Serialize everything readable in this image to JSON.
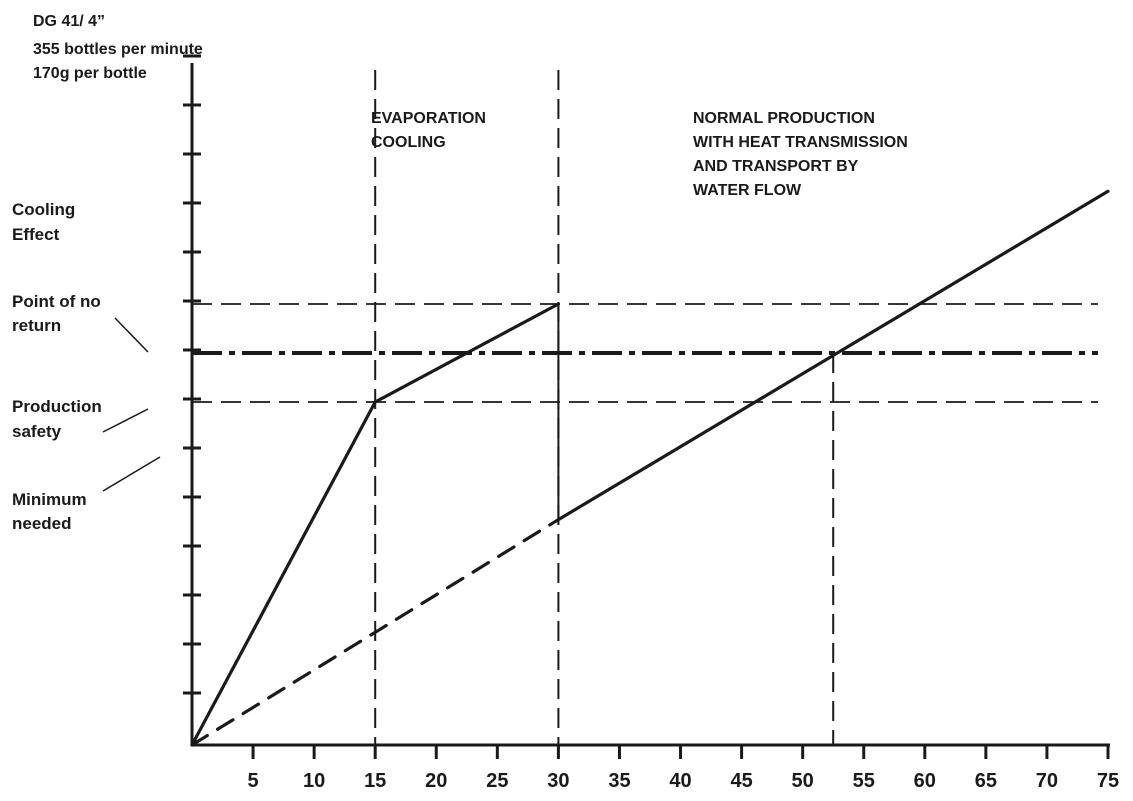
{
  "header": {
    "lines": [
      "DG  41/ 4”",
      "355 bottles per minute",
      "170g per bottle"
    ]
  },
  "side_labels": {
    "cooling_effect": [
      "Cooling",
      "Effect"
    ],
    "point_of_no_return": [
      "Point of no",
      "return"
    ],
    "production_safety": [
      "Production",
      "safety"
    ],
    "minimum_needed": [
      "Minimum",
      "needed"
    ]
  },
  "regions": {
    "evaporation": [
      "EVAPORATION",
      "COOLING"
    ],
    "normal": [
      "NORMAL PRODUCTION",
      "WITH HEAT TRANSMISSION",
      "AND TRANSPORT BY",
      "WATER FLOW"
    ]
  },
  "colors": {
    "ink": "#1a1a1a",
    "background": "#ffffff"
  },
  "chart_data": {
    "type": "line",
    "title": "",
    "xlabel": "",
    "ylabel": "Cooling Effect",
    "xlim": [
      0,
      75
    ],
    "ylim": [
      0,
      14
    ],
    "x_ticks": [
      5,
      10,
      15,
      20,
      25,
      30,
      35,
      40,
      45,
      50,
      55,
      60,
      65,
      70,
      75
    ],
    "y_tick_count": 14,
    "grid": false,
    "reference_lines": {
      "point_of_no_return": 8,
      "production_safety": 7,
      "minimum_needed": 6
    },
    "series": [
      {
        "style": "solid",
        "x": [
          0,
          15,
          30
        ],
        "y": [
          0,
          7,
          9
        ]
      },
      {
        "style": "dashed",
        "x": [
          0,
          30
        ],
        "y": [
          0,
          4.6
        ]
      },
      {
        "style": "solid",
        "x": [
          30,
          75
        ],
        "y": [
          4.6,
          11.3
        ]
      }
    ],
    "vertical_markers": [
      15,
      30,
      52.5
    ],
    "horizontal_markers": [
      9,
      8,
      7
    ]
  }
}
